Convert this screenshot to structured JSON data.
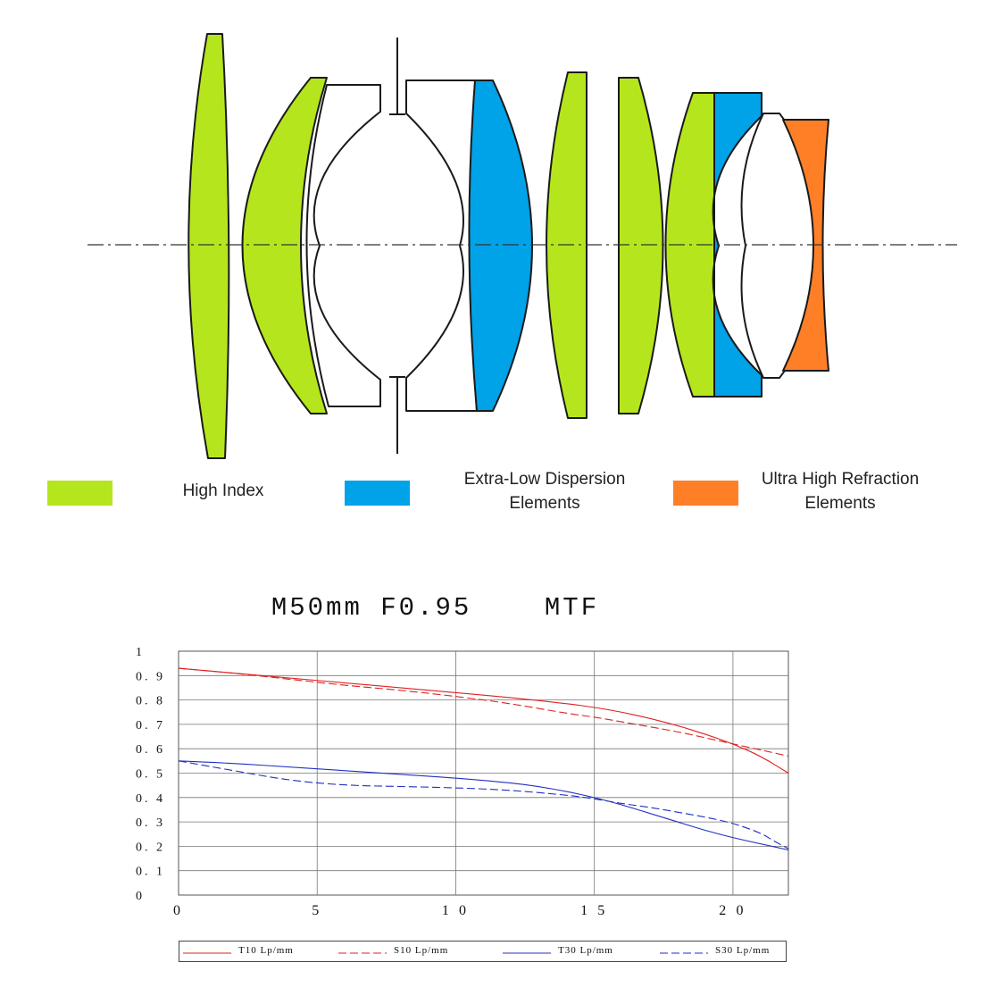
{
  "legend": {
    "items": [
      {
        "label": "High Index",
        "color": "#b5e61d"
      },
      {
        "label": "Extra-Low Dispersion\nElements",
        "color": "#00a2e8"
      },
      {
        "label": "Ultra High Refraction\nElements",
        "color": "#ff7f27"
      }
    ]
  },
  "colors": {
    "high_index": "#b5e61d",
    "ed": "#00a2e8",
    "uhr": "#ff7f27",
    "outline": "#1a1a1a"
  },
  "chart_data": {
    "type": "line",
    "title": "M50mm F0.95    MTF",
    "xlabel": "",
    "ylabel": "",
    "xlim": [
      0,
      22
    ],
    "ylim": [
      0,
      1
    ],
    "x_ticks": [
      "0",
      "5",
      "10",
      "15",
      "20"
    ],
    "y_ticks": [
      "0",
      "0.1",
      "0.2",
      "0.3",
      "0.4",
      "0.5",
      "0.6",
      "0.7",
      "0.8",
      "0.9",
      "1"
    ],
    "grid": true,
    "legend_position": "bottom",
    "series": [
      {
        "name": "T10 Lp/mm",
        "color": "#e02020",
        "dash": "solid",
        "x": [
          0,
          2,
          4,
          6,
          8,
          10,
          12,
          14,
          15,
          16,
          17,
          18,
          19,
          20,
          21,
          22
        ],
        "y": [
          0.93,
          0.91,
          0.89,
          0.87,
          0.85,
          0.83,
          0.81,
          0.785,
          0.77,
          0.75,
          0.725,
          0.695,
          0.66,
          0.62,
          0.57,
          0.5
        ]
      },
      {
        "name": "S10 Lp/mm",
        "color": "#e02020",
        "dash": "dashed",
        "x": [
          0,
          2,
          4,
          6,
          8,
          10,
          12,
          14,
          15,
          16,
          17,
          18,
          19,
          20,
          21,
          22
        ],
        "y": [
          0.93,
          0.91,
          0.885,
          0.86,
          0.84,
          0.815,
          0.785,
          0.745,
          0.73,
          0.71,
          0.69,
          0.67,
          0.645,
          0.62,
          0.595,
          0.57
        ]
      },
      {
        "name": "T30 Lp/mm",
        "color": "#2030c0",
        "dash": "solid",
        "x": [
          0,
          2,
          4,
          6,
          8,
          10,
          12,
          13,
          14,
          15,
          16,
          17,
          18,
          19,
          20,
          21,
          22
        ],
        "y": [
          0.55,
          0.54,
          0.525,
          0.51,
          0.495,
          0.48,
          0.46,
          0.445,
          0.425,
          0.4,
          0.37,
          0.335,
          0.3,
          0.265,
          0.235,
          0.21,
          0.185
        ]
      },
      {
        "name": "S30 Lp/mm",
        "color": "#2030c0",
        "dash": "dashed",
        "x": [
          0,
          2,
          4,
          6,
          8,
          10,
          12,
          14,
          15,
          16,
          17,
          18,
          19,
          20,
          21,
          21.5,
          22
        ],
        "y": [
          0.55,
          0.51,
          0.47,
          0.45,
          0.445,
          0.44,
          0.43,
          0.41,
          0.395,
          0.375,
          0.36,
          0.34,
          0.32,
          0.295,
          0.255,
          0.22,
          0.19
        ]
      }
    ]
  }
}
